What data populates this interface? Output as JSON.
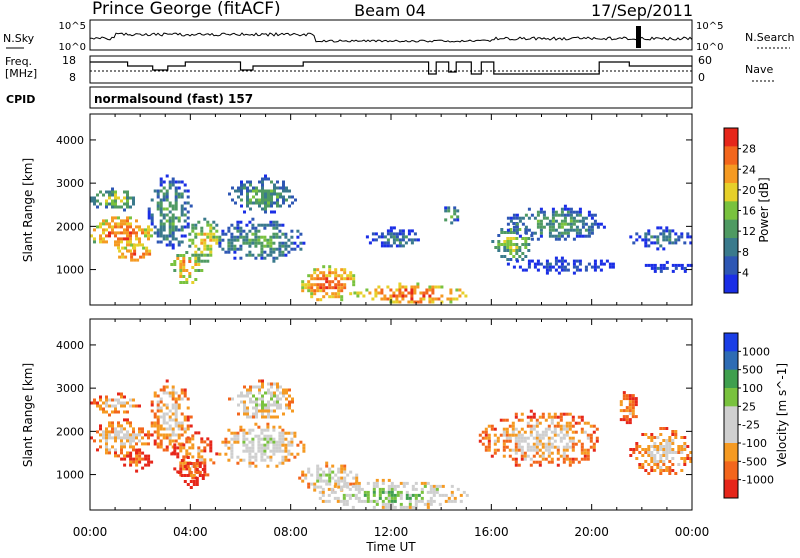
{
  "header": {
    "station": "Prince George (fitACF)",
    "beam": "Beam 04",
    "date": "17/Sep/2011"
  },
  "noise_panel": {
    "left_label": "N.Sky",
    "right_label": "N.Search",
    "left_ticks": [
      "10^5",
      "10^0"
    ],
    "right_ticks": [
      "10^5",
      "10^0"
    ]
  },
  "freq_panel": {
    "left_label_line1": "Freq.",
    "left_label_line2": "[MHz]",
    "right_label": "Nave",
    "left_ticks": [
      "18",
      "8"
    ],
    "right_ticks": [
      "60",
      "0"
    ]
  },
  "cpid": {
    "label": "CPID",
    "value": "normalsound (fast) 157"
  },
  "colors": {
    "power_scale": [
      "#1a2ee6",
      "#2e57b4",
      "#3a7a8c",
      "#4f9a62",
      "#79c23e",
      "#e6d02a",
      "#f59a22",
      "#f3661c",
      "#e6261a"
    ],
    "velocity_scale": [
      "#e6261a",
      "#f3661c",
      "#f59a22",
      "#cfcfcf",
      "#cfcfcf",
      "#79c23e",
      "#3f9f4e",
      "#2e6cb4",
      "#1a3ee6"
    ]
  },
  "chart_data": [
    {
      "type": "heatmap",
      "name": "power",
      "ylabel": "Slant Range [km]",
      "colorbar_label": "Power [dB]",
      "colorbar_ticks": [
        "28",
        "24",
        "20",
        "16",
        "12",
        "8",
        "4"
      ],
      "y_ticks": [
        "4000",
        "3000",
        "2000",
        "1000"
      ],
      "ylim": [
        180,
        4600
      ],
      "xlim_hours": [
        0,
        24
      ],
      "x_ticks": [
        "00:00",
        "04:00",
        "08:00",
        "12:00",
        "16:00",
        "20:00",
        "00:00"
      ],
      "grid": false,
      "regions": [
        {
          "t": [
            0.0,
            2.4
          ],
          "r": [
            1450,
            2300
          ],
          "level": 7
        },
        {
          "t": [
            0.0,
            2.0
          ],
          "r": [
            2400,
            2900
          ],
          "level": 4
        },
        {
          "t": [
            1.0,
            2.5
          ],
          "r": [
            1200,
            1600
          ],
          "level": 7
        },
        {
          "t": [
            2.3,
            4.0
          ],
          "r": [
            1500,
            3200
          ],
          "level": 3
        },
        {
          "t": [
            3.2,
            4.4
          ],
          "r": [
            700,
            1500
          ],
          "level": 6
        },
        {
          "t": [
            3.8,
            5.2
          ],
          "r": [
            1200,
            2200
          ],
          "level": 5
        },
        {
          "t": [
            5.5,
            8.2
          ],
          "r": [
            2300,
            3200
          ],
          "level": 3
        },
        {
          "t": [
            5.0,
            8.5
          ],
          "r": [
            1200,
            2200
          ],
          "level": 3
        },
        {
          "t": [
            8.3,
            10.6
          ],
          "r": [
            300,
            1100
          ],
          "level": 7
        },
        {
          "t": [
            10.5,
            15.0
          ],
          "r": [
            220,
            700
          ],
          "level": 7
        },
        {
          "t": [
            11.0,
            13.2
          ],
          "r": [
            1500,
            2000
          ],
          "level": 2
        },
        {
          "t": [
            14.0,
            14.7
          ],
          "r": [
            2000,
            2600
          ],
          "level": 3
        },
        {
          "t": [
            16.0,
            17.6
          ],
          "r": [
            1200,
            2100
          ],
          "level": 4
        },
        {
          "t": [
            16.5,
            20.5
          ],
          "r": [
            1700,
            2500
          ],
          "level": 3
        },
        {
          "t": [
            16.5,
            21.0
          ],
          "r": [
            950,
            1300
          ],
          "level": 1
        },
        {
          "t": [
            21.5,
            24.0
          ],
          "r": [
            1500,
            2000
          ],
          "level": 2
        },
        {
          "t": [
            22.0,
            24.0
          ],
          "r": [
            950,
            1200
          ],
          "level": 1
        }
      ]
    },
    {
      "type": "heatmap",
      "name": "velocity",
      "ylabel": "Slant Range [km]",
      "colorbar_label": "Velocity [m s^-1]",
      "colorbar_ticks": [
        "1000",
        "500",
        "100",
        "25",
        "-25",
        "-100",
        "-500",
        "-1000"
      ],
      "y_ticks": [
        "4000",
        "3000",
        "2000",
        "1000"
      ],
      "ylim": [
        180,
        4600
      ],
      "xlim_hours": [
        0,
        24
      ],
      "x_ticks": [
        "00:00",
        "04:00",
        "08:00",
        "12:00",
        "16:00",
        "20:00",
        "00:00"
      ],
      "xlabel": "Time UT",
      "grid": false,
      "regions": [
        {
          "t": [
            0.0,
            2.4
          ],
          "r": [
            1450,
            2300
          ],
          "level": 3
        },
        {
          "t": [
            0.0,
            2.0
          ],
          "r": [
            2400,
            2900
          ],
          "level": 3
        },
        {
          "t": [
            1.2,
            2.4
          ],
          "r": [
            1100,
            1600
          ],
          "level": 1
        },
        {
          "t": [
            2.3,
            4.0
          ],
          "r": [
            1500,
            3200
          ],
          "level": 3
        },
        {
          "t": [
            3.2,
            5.0
          ],
          "r": [
            900,
            2000
          ],
          "level": 2
        },
        {
          "t": [
            3.5,
            4.5
          ],
          "r": [
            700,
            1500
          ],
          "level": 1
        },
        {
          "t": [
            5.5,
            8.2
          ],
          "r": [
            2300,
            3200
          ],
          "level": 4
        },
        {
          "t": [
            5.0,
            8.5
          ],
          "r": [
            1200,
            2200
          ],
          "level": 4
        },
        {
          "t": [
            8.3,
            10.6
          ],
          "r": [
            600,
            1300
          ],
          "level": 4
        },
        {
          "t": [
            9.0,
            15.0
          ],
          "r": [
            220,
            900
          ],
          "level": 5
        },
        {
          "t": [
            15.5,
            20.5
          ],
          "r": [
            1200,
            2500
          ],
          "level": 3
        },
        {
          "t": [
            21.0,
            21.8
          ],
          "r": [
            2200,
            3000
          ],
          "level": 2
        },
        {
          "t": [
            21.5,
            24.0
          ],
          "r": [
            1000,
            2100
          ],
          "level": 3
        }
      ]
    }
  ]
}
